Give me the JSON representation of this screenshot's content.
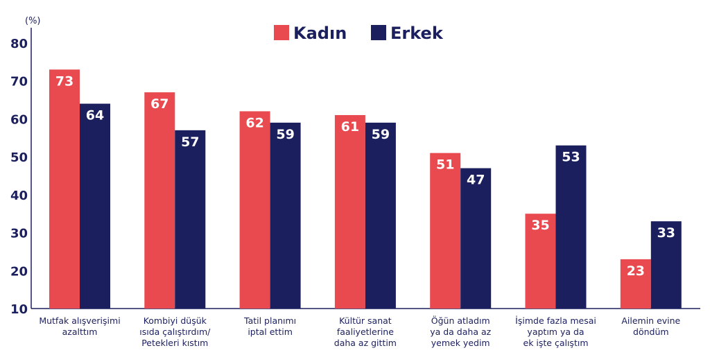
{
  "chart_data": {
    "type": "bar",
    "ylabel": "(%)",
    "ylim": [
      10,
      80
    ],
    "yticks": [
      10,
      20,
      30,
      40,
      50,
      60,
      70,
      80
    ],
    "grid": false,
    "legend": "top-center",
    "categories": [
      [
        "Mutfak alışverişimi",
        "azalttım"
      ],
      [
        "Kombiyi düşük",
        "ısıda çalıştırdım/",
        "Petekleri kıstım"
      ],
      [
        "Tatil planımı",
        "iptal ettim"
      ],
      [
        "Kültür sanat",
        "faaliyetlerine",
        "daha az gittim"
      ],
      [
        "Öğün atladım",
        "ya da daha az",
        "yemek yedim"
      ],
      [
        "İşimde fazla mesai",
        "yaptım ya da",
        "ek işte çalıştım"
      ],
      [
        "Ailemin evine",
        "döndüm"
      ]
    ],
    "series": [
      {
        "name": "Kadın",
        "color": "#e84a50",
        "values": [
          73,
          67,
          62,
          61,
          51,
          35,
          23
        ]
      },
      {
        "name": "Erkek",
        "color": "#1b1f5e",
        "values": [
          64,
          57,
          59,
          59,
          47,
          53,
          33
        ]
      }
    ]
  }
}
